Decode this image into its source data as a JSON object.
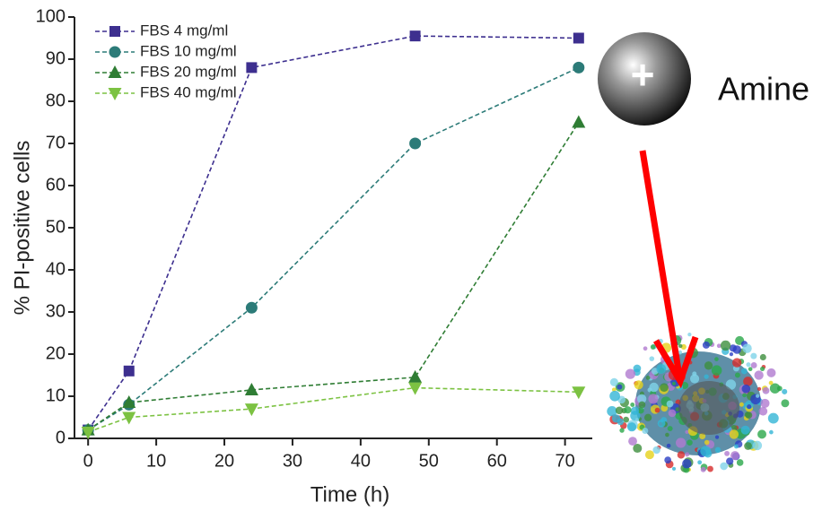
{
  "chart_data": {
    "type": "line",
    "x_label": "Time (h)",
    "y_label": "% PI-positive cells",
    "x": [
      0,
      6,
      24,
      48,
      72
    ],
    "series": [
      {
        "name": "FBS 4 mg/ml",
        "color": "#3d2f8f",
        "marker": "square",
        "values": [
          2,
          16,
          88,
          95.5,
          95
        ]
      },
      {
        "name": "FBS 10 mg/ml",
        "color": "#2c7b78",
        "marker": "circle",
        "values": [
          2,
          8,
          31,
          70,
          88
        ]
      },
      {
        "name": "FBS 20 mg/ml",
        "color": "#2f7d34",
        "marker": "triangle-up",
        "values": [
          2,
          8.5,
          11.5,
          14.5,
          75
        ]
      },
      {
        "name": "FBS 40 mg/ml",
        "color": "#7cc242",
        "marker": "triangle-down",
        "values": [
          1.5,
          5,
          7,
          12,
          11
        ]
      }
    ],
    "xlim": [
      -2,
      74
    ],
    "xticks": [
      0,
      10,
      20,
      30,
      40,
      50,
      60,
      70
    ],
    "ylim": [
      0,
      100
    ],
    "yticks": [
      0,
      10,
      20,
      30,
      40,
      50,
      60,
      70,
      80,
      90,
      100
    ],
    "line_style": "dashed",
    "legend": "top-left",
    "annotations": [
      "+",
      "Amine"
    ]
  }
}
